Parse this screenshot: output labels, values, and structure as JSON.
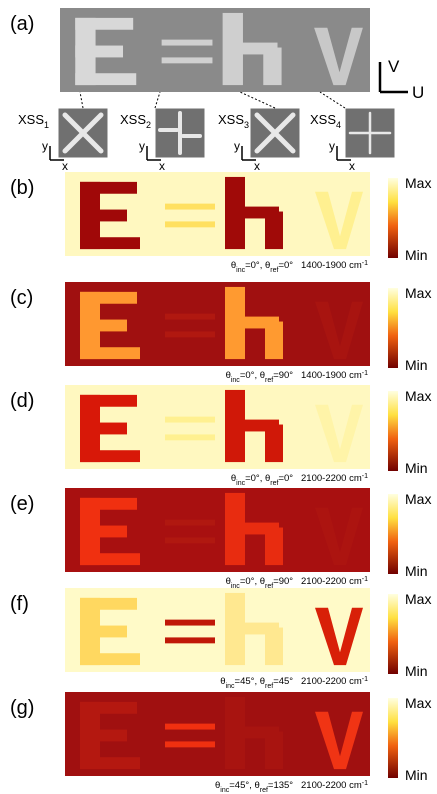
{
  "panel_a": {
    "label": "(a)",
    "v": "V",
    "u": "U",
    "axis_x": "x",
    "axis_y": "y",
    "insets": [
      {
        "name": "XSS",
        "sub": "1",
        "shape": "cross-x"
      },
      {
        "name": "XSS",
        "sub": "2",
        "shape": "plus"
      },
      {
        "name": "XSS",
        "sub": "3",
        "shape": "cross-x"
      },
      {
        "name": "XSS",
        "sub": "4",
        "shape": "plus-thin"
      }
    ],
    "colors": {
      "bg": "#8a8a8a",
      "E": "#d8d8d8",
      "eq": "#d0d0d0",
      "h": "#cfcfcf",
      "v": "#c8c8c8"
    }
  },
  "colorbar": {
    "max": "Max",
    "min": "Min"
  },
  "panels": [
    {
      "label": "(b)",
      "caption": [
        "θ",
        {
          "sub": "inc"
        },
        "=0°, θ",
        {
          "sub": "ref"
        },
        "=0°   1400-1900 cm",
        {
          "sup": "-1"
        }
      ],
      "colors": {
        "bg": "#fff8c0",
        "E": "#a00808",
        "eq": "#ffe060",
        "h": "#a00a08",
        "v": "#fff090"
      }
    },
    {
      "label": "(c)",
      "caption": [
        "θ",
        {
          "sub": "inc"
        },
        "=0°, θ",
        {
          "sub": "ref"
        },
        "=90°   1400-1900 cm",
        {
          "sup": "-1"
        }
      ],
      "colors": {
        "bg": "#a01010",
        "E": "#ff9830",
        "eq": "#b01810",
        "h": "#ff9a30",
        "v": "#a81410"
      }
    },
    {
      "label": "(d)",
      "caption": [
        "θ",
        {
          "sub": "inc"
        },
        "=0°, θ",
        {
          "sub": "ref"
        },
        "=0°   2100-2200 cm",
        {
          "sup": "-1"
        }
      ],
      "colors": {
        "bg": "#fff8c0",
        "E": "#d81808",
        "eq": "#fff090",
        "h": "#d01808",
        "v": "#fff4a8"
      }
    },
    {
      "label": "(e)",
      "caption": [
        "θ",
        {
          "sub": "inc"
        },
        "=0°, θ",
        {
          "sub": "ref"
        },
        "=90°   2100-2200 cm",
        {
          "sup": "-1"
        }
      ],
      "colors": {
        "bg": "#a81010",
        "E": "#f03010",
        "eq": "#b01810",
        "h": "#e82c10",
        "v": "#ac1410"
      }
    },
    {
      "label": "(f)",
      "caption": [
        "θ",
        {
          "sub": "inc"
        },
        "=45°, θ",
        {
          "sub": "ref"
        },
        "=45°   2100-2200 cm",
        {
          "sup": "-1"
        }
      ],
      "colors": {
        "bg": "#fffac8",
        "E": "#ffd860",
        "eq": "#c01808",
        "h": "#ffe890",
        "v": "#d82008"
      }
    },
    {
      "label": "(g)",
      "caption": [
        "θ",
        {
          "sub": "inc"
        },
        "=45°, θ",
        {
          "sub": "ref"
        },
        "=135°   2100-2200 cm",
        {
          "sup": "-1"
        }
      ],
      "colors": {
        "bg": "#a01010",
        "E": "#b41810",
        "eq": "#f03010",
        "h": "#a81410",
        "v": "#f03414"
      }
    }
  ]
}
